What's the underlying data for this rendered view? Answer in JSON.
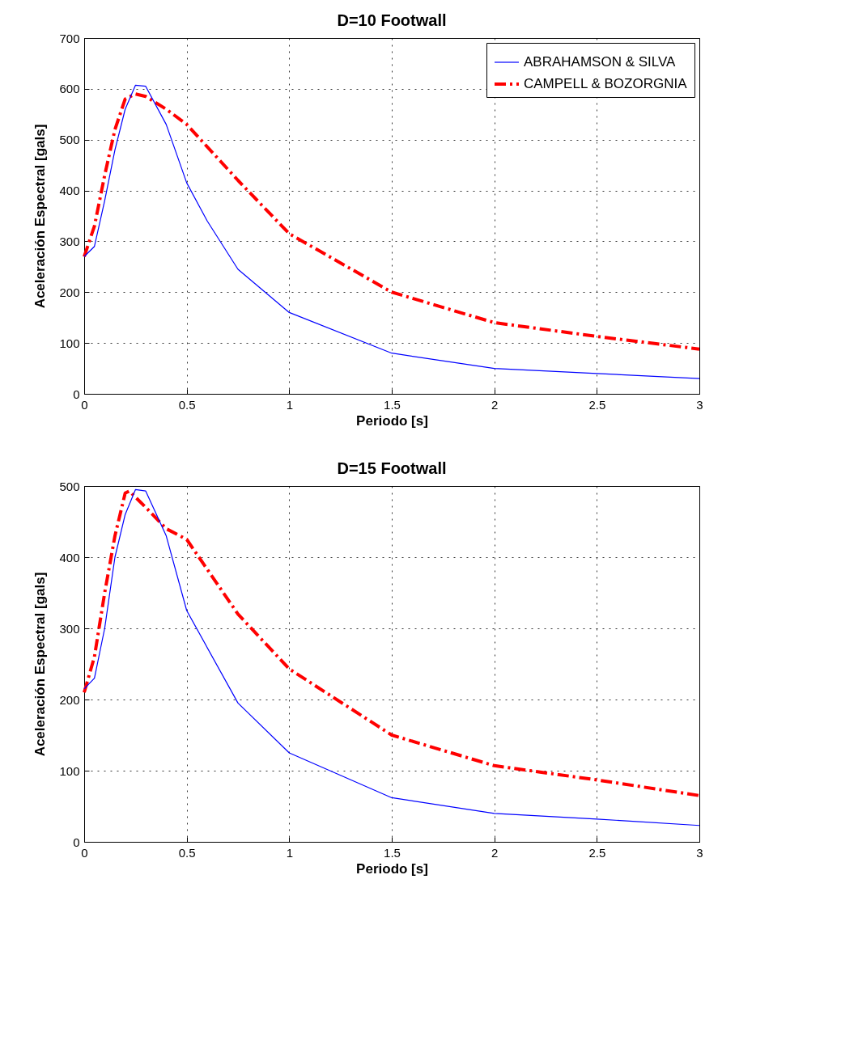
{
  "chart_data": [
    {
      "type": "line",
      "title": "D=10 Footwall",
      "xlabel": "Periodo [s]",
      "ylabel": "Aceleración Espectral [gals]",
      "xlim": [
        0,
        3
      ],
      "ylim": [
        0,
        700
      ],
      "xticks": [
        0,
        0.5,
        1,
        1.5,
        2,
        2.5,
        3
      ],
      "yticks": [
        0,
        100,
        200,
        300,
        400,
        500,
        600,
        700
      ],
      "grid": true,
      "legend": "top right",
      "series": [
        {
          "name": "ABRAHAMSON & SILVA",
          "color": "#0000ff",
          "line_style": "solid",
          "x": [
            0,
            0.05,
            0.1,
            0.15,
            0.2,
            0.25,
            0.3,
            0.4,
            0.5,
            0.6,
            0.75,
            1,
            1.5,
            2,
            2.5,
            3
          ],
          "values": [
            270,
            290,
            380,
            480,
            560,
            607,
            605,
            530,
            415,
            340,
            245,
            160,
            80,
            50,
            40,
            30
          ]
        },
        {
          "name": "CAMPELL & BOZORGNIA",
          "color": "#ff0000",
          "line_style": "dashed",
          "x": [
            0,
            0.05,
            0.1,
            0.15,
            0.2,
            0.25,
            0.3,
            0.4,
            0.5,
            0.75,
            1,
            1.5,
            2,
            2.5,
            3
          ],
          "values": [
            270,
            330,
            430,
            520,
            580,
            590,
            585,
            560,
            530,
            420,
            315,
            200,
            140,
            113,
            88
          ]
        }
      ]
    },
    {
      "type": "line",
      "title": "D=15 Footwall",
      "xlabel": "Periodo [s]",
      "ylabel": "Aceleración Espectral [gals]",
      "xlim": [
        0,
        3
      ],
      "ylim": [
        0,
        500
      ],
      "xticks": [
        0,
        0.5,
        1,
        1.5,
        2,
        2.5,
        3
      ],
      "yticks": [
        0,
        100,
        200,
        300,
        400,
        500
      ],
      "grid": true,
      "legend": "top right",
      "series": [
        {
          "name": "ABRAHAMSON & SILVA",
          "color": "#0000ff",
          "line_style": "solid",
          "x": [
            0,
            0.05,
            0.1,
            0.15,
            0.2,
            0.25,
            0.3,
            0.4,
            0.5,
            0.75,
            1,
            1.5,
            2,
            2.5,
            3
          ],
          "values": [
            215,
            230,
            300,
            400,
            460,
            495,
            493,
            430,
            325,
            195,
            125,
            62,
            40,
            32,
            23
          ]
        },
        {
          "name": "CAMPELL & BOZORGNIA",
          "color": "#ff0000",
          "line_style": "dashed",
          "x": [
            0,
            0.05,
            0.1,
            0.15,
            0.2,
            0.22,
            0.3,
            0.4,
            0.5,
            0.75,
            1,
            1.5,
            2,
            2.5,
            3
          ],
          "values": [
            210,
            260,
            350,
            430,
            490,
            493,
            470,
            440,
            425,
            320,
            243,
            150,
            107,
            87,
            65
          ]
        }
      ]
    }
  ]
}
